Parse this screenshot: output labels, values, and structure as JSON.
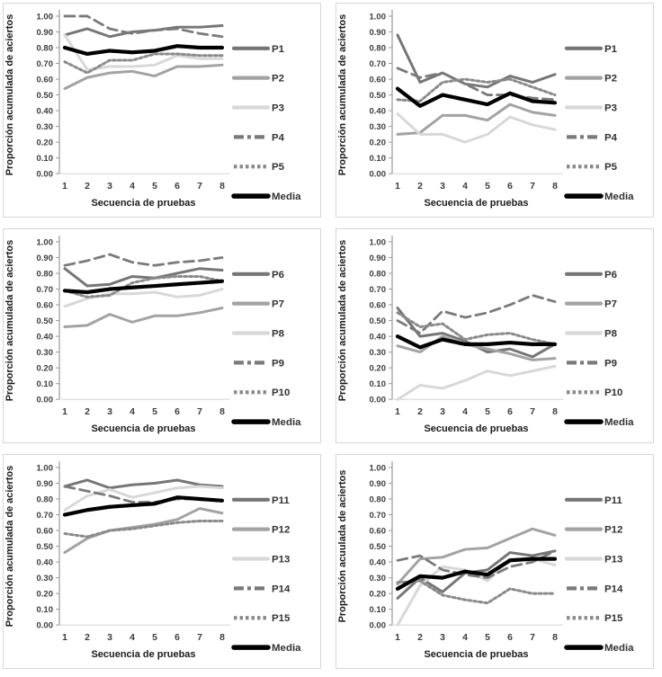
{
  "page": {
    "background": "#ffffff",
    "panel_border_color": "#d6d6d6"
  },
  "styles": {
    "series_styles": [
      {
        "role": "series-1",
        "color": "#767676",
        "width": 3,
        "dash": "",
        "legend_dash": ""
      },
      {
        "role": "series-2",
        "color": "#a3a3a3",
        "width": 3,
        "dash": "",
        "legend_dash": ""
      },
      {
        "role": "series-3",
        "color": "#d8d8d8",
        "width": 3,
        "dash": "",
        "legend_dash": ""
      },
      {
        "role": "series-4",
        "color": "#7a7a7a",
        "width": 2.8,
        "dash": "11,6",
        "legend_dash": "11,4,4,4"
      },
      {
        "role": "series-5",
        "color": "#8a8a8a",
        "width": 3,
        "dash": "3,3",
        "legend_dash": "3.5,3"
      },
      {
        "role": "series-media",
        "color": "#000000",
        "width": 4.2,
        "dash": "",
        "legend_dash": ""
      }
    ],
    "axis_line_color": "#9a9a9a",
    "baseline_color": "#d9d9d9"
  },
  "chart_data": [
    {
      "type": "line",
      "position": "top-left",
      "x": [
        1,
        2,
        3,
        4,
        5,
        6,
        7,
        8
      ],
      "xlabel": "Secuencia de pruebas",
      "ylabel": "Proporción acumulada de aciertos",
      "ylim": [
        0,
        1
      ],
      "ytick_step": 0.1,
      "grid": false,
      "legend_position": "right",
      "series": [
        {
          "name": "P1",
          "values": [
            0.88,
            0.92,
            0.87,
            0.9,
            0.91,
            0.93,
            0.93,
            0.94
          ]
        },
        {
          "name": "P2",
          "values": [
            0.54,
            0.61,
            0.64,
            0.65,
            0.62,
            0.68,
            0.68,
            0.69
          ]
        },
        {
          "name": "P3",
          "values": [
            0.88,
            0.66,
            0.68,
            0.68,
            0.69,
            0.75,
            0.73,
            0.73
          ]
        },
        {
          "name": "P4",
          "values": [
            1.0,
            1.0,
            0.92,
            0.89,
            0.91,
            0.92,
            0.89,
            0.87
          ]
        },
        {
          "name": "P5",
          "values": [
            0.71,
            0.64,
            0.72,
            0.72,
            0.76,
            0.76,
            0.75,
            0.75
          ]
        },
        {
          "name": "Media",
          "values": [
            0.8,
            0.76,
            0.78,
            0.77,
            0.78,
            0.81,
            0.8,
            0.8
          ]
        }
      ]
    },
    {
      "type": "line",
      "position": "top-right",
      "x": [
        1,
        2,
        3,
        4,
        5,
        6,
        7,
        8
      ],
      "xlabel": "Secuencia de pruebas",
      "ylabel": "Proporción acumulada de aciertos",
      "ylim": [
        0,
        1
      ],
      "ytick_step": 0.1,
      "grid": false,
      "legend_position": "right",
      "series": [
        {
          "name": "P1",
          "values": [
            0.88,
            0.58,
            0.64,
            0.57,
            0.55,
            0.62,
            0.58,
            0.63
          ]
        },
        {
          "name": "P2",
          "values": [
            0.25,
            0.26,
            0.37,
            0.37,
            0.34,
            0.44,
            0.39,
            0.37
          ]
        },
        {
          "name": "P3",
          "values": [
            0.38,
            0.25,
            0.25,
            0.2,
            0.25,
            0.36,
            0.31,
            0.28
          ]
        },
        {
          "name": "P4",
          "values": [
            0.67,
            0.61,
            0.64,
            0.57,
            0.5,
            0.5,
            0.48,
            0.47
          ]
        },
        {
          "name": "P5",
          "values": [
            0.47,
            0.46,
            0.58,
            0.6,
            0.58,
            0.6,
            0.55,
            0.5
          ]
        },
        {
          "name": "Media",
          "values": [
            0.54,
            0.43,
            0.5,
            0.47,
            0.44,
            0.51,
            0.46,
            0.45
          ]
        }
      ]
    },
    {
      "type": "line",
      "position": "middle-left",
      "x": [
        1,
        2,
        3,
        4,
        5,
        6,
        7,
        8
      ],
      "xlabel": "Secuencia de pruebas",
      "ylabel": "Proporción acumulada de aciertos",
      "ylim": [
        0,
        1
      ],
      "ytick_step": 0.1,
      "grid": false,
      "legend_position": "right",
      "series": [
        {
          "name": "P6",
          "values": [
            0.83,
            0.72,
            0.73,
            0.78,
            0.77,
            0.8,
            0.83,
            0.82
          ]
        },
        {
          "name": "P7",
          "values": [
            0.46,
            0.47,
            0.54,
            0.49,
            0.53,
            0.53,
            0.55,
            0.58
          ]
        },
        {
          "name": "P8",
          "values": [
            0.59,
            0.64,
            0.67,
            0.67,
            0.68,
            0.65,
            0.66,
            0.7
          ]
        },
        {
          "name": "P9",
          "values": [
            0.85,
            0.88,
            0.92,
            0.87,
            0.85,
            0.87,
            0.88,
            0.9
          ]
        },
        {
          "name": "P10",
          "values": [
            0.69,
            0.65,
            0.66,
            0.74,
            0.77,
            0.78,
            0.78,
            0.75
          ]
        },
        {
          "name": "Media",
          "values": [
            0.69,
            0.68,
            0.7,
            0.71,
            0.72,
            0.73,
            0.74,
            0.75
          ]
        }
      ]
    },
    {
      "type": "line",
      "position": "middle-right",
      "x": [
        1,
        2,
        3,
        4,
        5,
        6,
        7,
        8
      ],
      "xlabel": "Secuencia de pruebas",
      "ylabel": "Proporción acumulada de aciertos",
      "ylim": [
        0,
        1
      ],
      "ytick_step": 0.1,
      "grid": false,
      "legend_position": "right",
      "series": [
        {
          "name": "P6",
          "values": [
            0.58,
            0.4,
            0.42,
            0.37,
            0.3,
            0.32,
            0.27,
            0.35
          ]
        },
        {
          "name": "P7",
          "values": [
            0.34,
            0.3,
            0.4,
            0.35,
            0.32,
            0.29,
            0.25,
            0.26
          ]
        },
        {
          "name": "P8",
          "values": [
            0.0,
            0.09,
            0.07,
            0.12,
            0.18,
            0.15,
            0.18,
            0.21
          ]
        },
        {
          "name": "P9",
          "values": [
            0.5,
            0.42,
            0.56,
            0.52,
            0.55,
            0.6,
            0.66,
            0.62
          ]
        },
        {
          "name": "P10",
          "values": [
            0.55,
            0.46,
            0.48,
            0.38,
            0.41,
            0.42,
            0.38,
            0.35
          ]
        },
        {
          "name": "Media",
          "values": [
            0.4,
            0.33,
            0.38,
            0.35,
            0.35,
            0.36,
            0.35,
            0.35
          ]
        }
      ]
    },
    {
      "type": "line",
      "position": "bottom-left",
      "x": [
        1,
        2,
        3,
        4,
        5,
        6,
        7,
        8
      ],
      "xlabel": "Secuencia de pruebas",
      "ylabel": "Proporción acumulada de aciertos",
      "ylim": [
        0,
        1
      ],
      "ytick_step": 0.1,
      "grid": false,
      "legend_position": "right",
      "series": [
        {
          "name": "P11",
          "values": [
            0.88,
            0.92,
            0.87,
            0.89,
            0.9,
            0.92,
            0.89,
            0.88
          ]
        },
        {
          "name": "P12",
          "values": [
            0.46,
            0.55,
            0.6,
            0.62,
            0.64,
            0.67,
            0.74,
            0.71
          ]
        },
        {
          "name": "P13",
          "values": [
            0.73,
            0.82,
            0.86,
            0.81,
            0.84,
            0.87,
            0.88,
            0.87
          ]
        },
        {
          "name": "P14",
          "values": [
            0.88,
            0.85,
            0.82,
            0.78,
            0.78,
            0.8,
            0.8,
            0.79
          ]
        },
        {
          "name": "P15",
          "values": [
            0.58,
            0.56,
            0.6,
            0.61,
            0.63,
            0.65,
            0.66,
            0.66
          ]
        },
        {
          "name": "Media",
          "values": [
            0.7,
            0.73,
            0.75,
            0.76,
            0.77,
            0.81,
            0.8,
            0.79
          ]
        }
      ]
    },
    {
      "type": "line",
      "position": "bottom-right",
      "x": [
        1,
        2,
        3,
        4,
        5,
        6,
        7,
        8
      ],
      "xlabel": "Secuencia de pruebas",
      "ylabel": "Proporción acuulada de aciertos",
      "ylim": [
        0,
        1
      ],
      "ytick_step": 0.1,
      "grid": false,
      "legend_position": "right",
      "series": [
        {
          "name": "P11",
          "values": [
            0.17,
            0.3,
            0.21,
            0.33,
            0.35,
            0.46,
            0.44,
            0.47
          ]
        },
        {
          "name": "P12",
          "values": [
            0.26,
            0.42,
            0.43,
            0.48,
            0.49,
            0.55,
            0.61,
            0.57
          ]
        },
        {
          "name": "P13",
          "values": [
            0.0,
            0.25,
            0.37,
            0.35,
            0.28,
            0.42,
            0.42,
            0.38
          ]
        },
        {
          "name": "P14",
          "values": [
            0.41,
            0.44,
            0.35,
            0.32,
            0.3,
            0.37,
            0.4,
            0.47
          ]
        },
        {
          "name": "P15",
          "values": [
            0.27,
            0.28,
            0.19,
            0.16,
            0.14,
            0.23,
            0.2,
            0.2
          ]
        },
        {
          "name": "Media",
          "values": [
            0.23,
            0.31,
            0.3,
            0.34,
            0.32,
            0.41,
            0.42,
            0.42
          ]
        }
      ]
    }
  ]
}
